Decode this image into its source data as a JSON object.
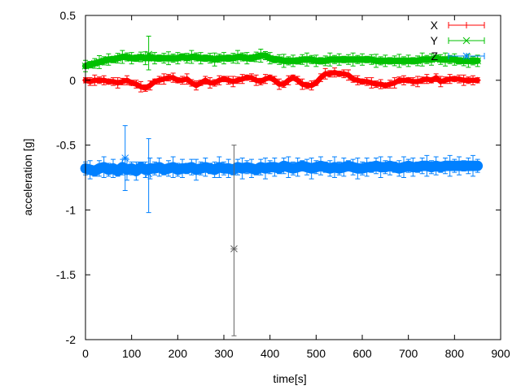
{
  "chart_data": {
    "type": "scatter",
    "title": "",
    "xlabel": "time[s]",
    "ylabel": "acceleration [g]",
    "xlim": [
      0,
      900
    ],
    "ylim": [
      -2,
      0.5
    ],
    "xticks": [
      "0",
      "100",
      "200",
      "300",
      "400",
      "500",
      "600",
      "700",
      "800",
      "900"
    ],
    "yticks": [
      "0.5",
      "0",
      "-0.5",
      "-1",
      "-1.5",
      "-2"
    ],
    "grid": false,
    "legend": "top-right",
    "error_bars": true,
    "x": [
      0,
      10,
      20,
      30,
      40,
      50,
      60,
      70,
      80,
      90,
      100,
      110,
      120,
      130,
      140,
      150,
      160,
      170,
      180,
      190,
      200,
      210,
      220,
      230,
      240,
      250,
      260,
      270,
      280,
      290,
      300,
      310,
      320,
      330,
      340,
      350,
      360,
      370,
      380,
      390,
      400,
      410,
      420,
      430,
      440,
      450,
      460,
      470,
      480,
      490,
      500,
      510,
      520,
      530,
      540,
      550,
      560,
      570,
      580,
      590,
      600,
      610,
      620,
      630,
      640,
      650,
      660,
      670,
      680,
      690,
      700,
      710,
      720,
      730,
      740,
      750,
      760,
      770,
      780,
      790,
      800,
      810,
      820,
      830,
      840,
      850
    ],
    "series": [
      {
        "name": "X",
        "color": "#ff0000",
        "marker": "plus",
        "typical_error": 0.02,
        "values": [
          0.0,
          -0.01,
          0.0,
          0.0,
          0.0,
          -0.01,
          -0.01,
          -0.02,
          -0.01,
          0.0,
          -0.02,
          -0.03,
          -0.05,
          -0.06,
          -0.04,
          -0.01,
          0.0,
          0.01,
          0.02,
          0.02,
          0.0,
          0.0,
          0.01,
          -0.02,
          -0.04,
          -0.02,
          0.0,
          -0.02,
          -0.02,
          0.0,
          0.01,
          0.0,
          -0.01,
          0.0,
          0.01,
          0.02,
          0.02,
          0.0,
          -0.01,
          0.01,
          0.02,
          0.0,
          -0.03,
          -0.03,
          0.0,
          0.02,
          0.0,
          -0.03,
          -0.04,
          -0.04,
          -0.02,
          0.02,
          0.05,
          0.05,
          0.06,
          0.05,
          0.05,
          0.04,
          0.01,
          0.0,
          -0.01,
          -0.01,
          -0.02,
          -0.03,
          -0.03,
          -0.04,
          -0.03,
          -0.02,
          0.0,
          0.0,
          0.0,
          -0.01,
          -0.01,
          0.0,
          0.01,
          0.0,
          0.02,
          -0.01,
          0.0,
          0.01,
          0.01,
          0.01,
          0.0,
          0.0,
          0.0,
          0.0
        ]
      },
      {
        "name": "Y",
        "color": "#00c000",
        "marker": "cross",
        "typical_error": 0.025,
        "values": [
          0.11,
          0.12,
          0.13,
          0.14,
          0.15,
          0.16,
          0.16,
          0.17,
          0.18,
          0.18,
          0.17,
          0.17,
          0.18,
          0.17,
          0.18,
          0.17,
          0.17,
          0.17,
          0.17,
          0.17,
          0.17,
          0.18,
          0.17,
          0.18,
          0.18,
          0.17,
          0.17,
          0.17,
          0.16,
          0.17,
          0.17,
          0.17,
          0.17,
          0.18,
          0.18,
          0.17,
          0.17,
          0.18,
          0.19,
          0.19,
          0.17,
          0.16,
          0.16,
          0.15,
          0.15,
          0.15,
          0.15,
          0.16,
          0.16,
          0.16,
          0.15,
          0.15,
          0.15,
          0.16,
          0.16,
          0.16,
          0.16,
          0.16,
          0.16,
          0.16,
          0.16,
          0.16,
          0.16,
          0.15,
          0.15,
          0.15,
          0.15,
          0.15,
          0.15,
          0.15,
          0.15,
          0.15,
          0.15,
          0.16,
          0.16,
          0.16,
          0.17,
          0.16,
          0.16,
          0.16,
          0.16,
          0.15,
          0.15,
          0.15,
          0.15,
          0.15
        ]
      },
      {
        "name": "Z",
        "color": "#0080ff",
        "marker": "star",
        "typical_error": 0.04,
        "values": [
          -0.68,
          -0.69,
          -0.7,
          -0.68,
          -0.67,
          -0.69,
          -0.68,
          -0.7,
          -0.67,
          -0.69,
          -0.68,
          -0.7,
          -0.67,
          -0.69,
          -0.68,
          -0.68,
          -0.67,
          -0.69,
          -0.68,
          -0.67,
          -0.69,
          -0.68,
          -0.68,
          -0.67,
          -0.69,
          -0.68,
          -0.67,
          -0.68,
          -0.69,
          -0.67,
          -0.68,
          -0.68,
          -0.69,
          -0.67,
          -0.68,
          -0.67,
          -0.68,
          -0.69,
          -0.67,
          -0.68,
          -0.67,
          -0.67,
          -0.68,
          -0.66,
          -0.67,
          -0.68,
          -0.67,
          -0.66,
          -0.67,
          -0.68,
          -0.67,
          -0.66,
          -0.67,
          -0.68,
          -0.67,
          -0.68,
          -0.67,
          -0.66,
          -0.67,
          -0.68,
          -0.68,
          -0.67,
          -0.67,
          -0.66,
          -0.67,
          -0.67,
          -0.66,
          -0.67,
          -0.68,
          -0.67,
          -0.66,
          -0.67,
          -0.67,
          -0.66,
          -0.66,
          -0.67,
          -0.66,
          -0.67,
          -0.66,
          -0.66,
          -0.66,
          -0.66,
          -0.66,
          -0.66,
          -0.66,
          -0.66
        ]
      }
    ],
    "outliers": [
      {
        "series": "Z",
        "x": 322,
        "y": -1.3,
        "ylow": -1.97,
        "yhigh": -0.5
      },
      {
        "series": "Y",
        "x": 137,
        "y": 0.2,
        "ylow": 0.08,
        "yhigh": 0.34
      },
      {
        "series": "Z",
        "x": 86,
        "y": -0.6,
        "ylow": -0.85,
        "yhigh": -0.35
      },
      {
        "series": "Z",
        "x": 137,
        "y": -0.72,
        "ylow": -1.02,
        "yhigh": -0.45
      }
    ]
  }
}
